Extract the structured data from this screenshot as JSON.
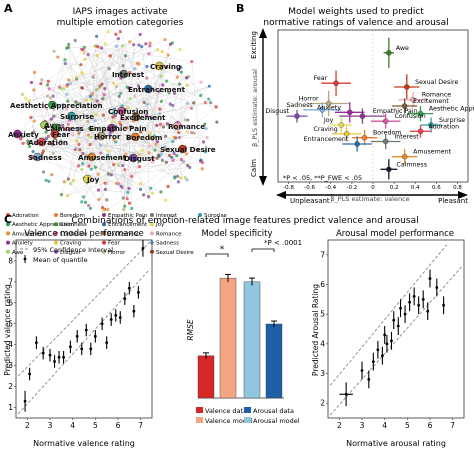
{
  "panels": {
    "a": {
      "letter": "A",
      "title_line1": "IAPS images activate",
      "title_line2": "multiple emotion categories",
      "cluster_labels": [
        {
          "text": "Interest"
        },
        {
          "text": "Craving"
        },
        {
          "text": "Entrancement"
        },
        {
          "text": "Aesthetic Appreciation"
        },
        {
          "text": "Surprise"
        },
        {
          "text": "Awe"
        },
        {
          "text": "Excitement"
        },
        {
          "text": "Calmness"
        },
        {
          "text": "Adoration"
        },
        {
          "text": "Fear"
        },
        {
          "text": "Confusion"
        },
        {
          "text": "Empathic Pain"
        },
        {
          "text": "Horror"
        },
        {
          "text": "Boredom"
        },
        {
          "text": "Anxiety"
        },
        {
          "text": "Romance"
        },
        {
          "text": "Sadness"
        },
        {
          "text": "Amusement"
        },
        {
          "text": "Disgust"
        },
        {
          "text": "Sexual Desire"
        },
        {
          "text": "Joy"
        }
      ],
      "legend": [
        {
          "label": "Adoration",
          "color": "#e8444f"
        },
        {
          "label": "Aesthetic Appreciation",
          "color": "#2e9f4a"
        },
        {
          "label": "Amusement",
          "color": "#e98a2d"
        },
        {
          "label": "Anxiety",
          "color": "#9a2a9a"
        },
        {
          "label": "Awe",
          "color": "#9bd75a"
        },
        {
          "label": "Boredom",
          "color": "#ee7b2c"
        },
        {
          "label": "Calmness",
          "color": "#3e8b3e"
        },
        {
          "label": "Confusion",
          "color": "#d35a9f"
        },
        {
          "label": "Craving",
          "color": "#e5c43a"
        },
        {
          "label": "Disgust",
          "color": "#7b4fa8"
        },
        {
          "label": "Empathic Pain",
          "color": "#8a3a8a"
        },
        {
          "label": "Entrancement",
          "color": "#2c6ba8"
        },
        {
          "label": "Excitement",
          "color": "#7a5a3a"
        },
        {
          "label": "Fear",
          "color": "#d83a3a"
        },
        {
          "label": "Horror",
          "color": "#b7a97a"
        },
        {
          "label": "Interest",
          "color": "#6f7a6f"
        },
        {
          "label": "Joy",
          "color": "#e5d84a"
        },
        {
          "label": "Romance",
          "color": "#f0a6b6"
        },
        {
          "label": "Sadness",
          "color": "#7fb0e0"
        },
        {
          "label": "Sexual Desire",
          "color": "#c43a1a"
        },
        {
          "label": "Surprise",
          "color": "#2aa0a0"
        }
      ]
    },
    "b": {
      "letter": "B",
      "title_line1": "Model weights used to predict",
      "title_line2": "normative ratings of valence and arousal",
      "y_top_label": "Exciting",
      "y_bottom_label": "Calm",
      "y_axis_label": "β_PLS estimate: arousal",
      "x_axis_label": "β_PLS estimate: valence",
      "x_left_label": "Unpleasant",
      "x_right_label": "Pleasant",
      "x_ticks": [
        "-0.8",
        "-0.6",
        "-0.4",
        "-0.2",
        "0",
        "0.2",
        "0.4",
        "0.6",
        "0.8"
      ],
      "note": "*P < .05, **P_FWE < .05"
    },
    "c": {
      "letter": "C",
      "title": "Combinations of emotion-related image features predict valence and arousal",
      "valence_title": "Valence model performance",
      "valence_ylabel": "Predicted valence rating",
      "valence_xlabel": "Normative valence rating",
      "valence_legend_ci": "95% Confidence Interval",
      "valence_legend_mean": "Mean of quantile",
      "valence_x_ticks": [
        "2",
        "3",
        "4",
        "5",
        "6",
        "7"
      ],
      "valence_y_ticks": [
        "1",
        "2",
        "3",
        "4",
        "5",
        "6",
        "7",
        "8"
      ],
      "spec_title_line1": "Model specificity",
      "spec_ylabel": "RMSE",
      "spec_annot_star": "*",
      "spec_annot_p": "*P < .0001",
      "spec_legend": [
        {
          "label": "Valence data",
          "color": "#d62728"
        },
        {
          "label": "Arousal data",
          "color": "#1f5fa8"
        },
        {
          "label": "Valence model",
          "color": "#f4a582"
        },
        {
          "label": "Arousal model",
          "color": "#92c5de"
        }
      ],
      "arousal_title": "Arousal model performance",
      "arousal_ylabel": "Predicted Arousal Rating",
      "arousal_xlabel": "Normative arousal rating",
      "arousal_x_ticks": [
        "2",
        "3",
        "4",
        "5",
        "6",
        "7"
      ],
      "arousal_y_ticks": [
        "2",
        "3",
        "4",
        "5",
        "6",
        "7"
      ]
    }
  },
  "chart_data": [
    {
      "type": "scatter",
      "title": "Model weights used to predict normative ratings of valence and arousal",
      "xlabel": "β_PLS estimate: valence",
      "ylabel": "β_PLS estimate: arousal",
      "xlim": [
        -0.9,
        0.9
      ],
      "points": [
        {
          "name": "Awe",
          "x": 0.15,
          "y": 0.42,
          "xerr": 0.05,
          "yerr": 0.12,
          "color": "#3e7a2e"
        },
        {
          "name": "Fear",
          "x": -0.35,
          "y": 0.18,
          "xerr": 0.14,
          "yerr": 0.1,
          "color": "#d83a3a"
        },
        {
          "name": "Sexual Desire",
          "x": 0.32,
          "y": 0.15,
          "xerr": 0.12,
          "yerr": 0.1,
          "color": "#c43a1a"
        },
        {
          "name": "Horror",
          "x": -0.42,
          "y": 0.02,
          "xerr": 0.2,
          "yerr": 0.1,
          "color": "#b7a97a"
        },
        {
          "name": "Romance",
          "x": 0.38,
          "y": 0.05,
          "xerr": 0.14,
          "yerr": 0.06,
          "color": "#f0a6b6"
        },
        {
          "name": "Excitement",
          "x": 0.3,
          "y": 0.0,
          "xerr": 0.12,
          "yerr": 0.06,
          "color": "#7a5a3a"
        },
        {
          "name": "Sadness",
          "x": -0.48,
          "y": -0.03,
          "xerr": 0.18,
          "yerr": 0.06,
          "color": "#7fb0e0"
        },
        {
          "name": "Anxiety",
          "x": -0.22,
          "y": -0.05,
          "xerr": 0.14,
          "yerr": 0.08,
          "color": "#9a2a9a"
        },
        {
          "name": "Aesthetic Appreciation",
          "x": 0.45,
          "y": -0.06,
          "xerr": 0.12,
          "yerr": 0.06,
          "color": "#2e9f4a"
        },
        {
          "name": "Disgust",
          "x": -0.72,
          "y": -0.08,
          "xerr": 0.1,
          "yerr": 0.05,
          "color": "#7b4fa8"
        },
        {
          "name": "Empathic Pain",
          "x": -0.1,
          "y": -0.08,
          "xerr": 0.22,
          "yerr": 0.06,
          "color": "#8a3a8a"
        },
        {
          "name": "Joy",
          "x": -0.3,
          "y": -0.15,
          "xerr": 0.1,
          "yerr": 0.06,
          "color": "#e5d84a"
        },
        {
          "name": "Confusion",
          "x": 0.12,
          "y": -0.12,
          "xerr": 0.14,
          "yerr": 0.06,
          "color": "#d35a9f"
        },
        {
          "name": "Surprise",
          "x": 0.55,
          "y": -0.15,
          "xerr": 0.1,
          "yerr": 0.06,
          "color": "#2aa0a0"
        },
        {
          "name": "Craving",
          "x": -0.25,
          "y": -0.22,
          "xerr": 0.14,
          "yerr": 0.06,
          "color": "#e5c43a"
        },
        {
          "name": "Adoration",
          "x": 0.45,
          "y": -0.2,
          "xerr": 0.1,
          "yerr": 0.05,
          "color": "#e8444f"
        },
        {
          "name": "Boredom",
          "x": -0.08,
          "y": -0.25,
          "xerr": 0.12,
          "yerr": 0.06,
          "color": "#ee7b2c"
        },
        {
          "name": "Entrancement",
          "x": -0.15,
          "y": -0.3,
          "xerr": 0.14,
          "yerr": 0.06,
          "color": "#2c6ba8"
        },
        {
          "name": "Interest",
          "x": 0.12,
          "y": -0.28,
          "xerr": 0.14,
          "yerr": 0.06,
          "color": "#6f7a6f"
        },
        {
          "name": "Amusement",
          "x": 0.3,
          "y": -0.4,
          "xerr": 0.12,
          "yerr": 0.06,
          "color": "#e98a2d"
        },
        {
          "name": "Calmness",
          "x": 0.15,
          "y": -0.5,
          "xerr": 0.08,
          "yerr": 0.08,
          "color": "#1a1a2e"
        }
      ]
    },
    {
      "type": "scatter",
      "title": "Valence model performance",
      "xlabel": "Normative valence rating",
      "ylabel": "Predicted valence rating",
      "xlim": [
        1.5,
        7.5
      ],
      "ylim": [
        0.5,
        9
      ],
      "points": [
        {
          "x": 1.9,
          "y": 1.3,
          "yerr": 0.5
        },
        {
          "x": 2.1,
          "y": 2.6,
          "yerr": 0.3
        },
        {
          "x": 2.4,
          "y": 4.1,
          "yerr": 0.3
        },
        {
          "x": 2.7,
          "y": 3.6,
          "yerr": 0.3
        },
        {
          "x": 3.0,
          "y": 3.5,
          "yerr": 0.3
        },
        {
          "x": 3.2,
          "y": 3.2,
          "yerr": 0.3
        },
        {
          "x": 3.4,
          "y": 3.4,
          "yerr": 0.3
        },
        {
          "x": 3.6,
          "y": 3.4,
          "yerr": 0.3
        },
        {
          "x": 3.9,
          "y": 3.9,
          "yerr": 0.3
        },
        {
          "x": 4.2,
          "y": 4.4,
          "yerr": 0.3
        },
        {
          "x": 4.4,
          "y": 3.8,
          "yerr": 0.3
        },
        {
          "x": 4.6,
          "y": 4.7,
          "yerr": 0.3
        },
        {
          "x": 4.8,
          "y": 3.8,
          "yerr": 0.3
        },
        {
          "x": 5.0,
          "y": 4.4,
          "yerr": 0.3
        },
        {
          "x": 5.3,
          "y": 5.0,
          "yerr": 0.3
        },
        {
          "x": 5.5,
          "y": 4.1,
          "yerr": 0.3
        },
        {
          "x": 5.7,
          "y": 5.2,
          "yerr": 0.3
        },
        {
          "x": 5.9,
          "y": 5.4,
          "yerr": 0.3
        },
        {
          "x": 6.1,
          "y": 5.3,
          "yerr": 0.3
        },
        {
          "x": 6.3,
          "y": 6.2,
          "yerr": 0.3
        },
        {
          "x": 6.5,
          "y": 6.7,
          "yerr": 0.3
        },
        {
          "x": 6.7,
          "y": 5.6,
          "yerr": 0.3
        },
        {
          "x": 6.9,
          "y": 6.5,
          "yerr": 0.3
        },
        {
          "x": 7.1,
          "y": 8.6,
          "yerr": 0.4
        }
      ]
    },
    {
      "type": "bar",
      "title": "Model specificity",
      "ylabel": "RMSE",
      "categories": [
        "Valence data",
        "Arousal data"
      ],
      "series": [
        {
          "name": "Valence model",
          "values": [
            0.57,
            1.62
          ],
          "errors": [
            0.04,
            0.05
          ]
        },
        {
          "name": "Arousal model",
          "values": [
            1.57,
            1.0
          ],
          "errors": [
            0.05,
            0.04
          ]
        }
      ],
      "bar_colors": [
        "#d62728",
        "#f4a582",
        "#92c5de",
        "#1f5fa8"
      ],
      "ylim": [
        0,
        2
      ]
    },
    {
      "type": "scatter",
      "title": "Arousal model performance",
      "xlabel": "Normative arousal rating",
      "ylabel": "Predicted Arousal Rating",
      "xlim": [
        1.5,
        7.5
      ],
      "ylim": [
        1.5,
        7.5
      ],
      "points": [
        {
          "x": 2.3,
          "y": 2.3,
          "yerr": 0.4,
          "xerr": 0.3
        },
        {
          "x": 3.0,
          "y": 3.1,
          "yerr": 0.3
        },
        {
          "x": 3.3,
          "y": 2.8,
          "yerr": 0.3
        },
        {
          "x": 3.5,
          "y": 3.4,
          "yerr": 0.3
        },
        {
          "x": 3.7,
          "y": 3.8,
          "yerr": 0.3
        },
        {
          "x": 3.9,
          "y": 3.6,
          "yerr": 0.3
        },
        {
          "x": 4.0,
          "y": 4.3,
          "yerr": 0.3
        },
        {
          "x": 4.1,
          "y": 4.0,
          "yerr": 0.3
        },
        {
          "x": 4.3,
          "y": 4.1,
          "yerr": 0.3
        },
        {
          "x": 4.4,
          "y": 4.8,
          "yerr": 0.3
        },
        {
          "x": 4.6,
          "y": 4.6,
          "yerr": 0.3
        },
        {
          "x": 4.7,
          "y": 5.2,
          "yerr": 0.3
        },
        {
          "x": 4.9,
          "y": 5.0,
          "yerr": 0.3
        },
        {
          "x": 5.1,
          "y": 5.4,
          "yerr": 0.3
        },
        {
          "x": 5.3,
          "y": 5.6,
          "yerr": 0.3
        },
        {
          "x": 5.5,
          "y": 5.3,
          "yerr": 0.3
        },
        {
          "x": 5.7,
          "y": 5.5,
          "yerr": 0.3
        },
        {
          "x": 5.9,
          "y": 5.1,
          "yerr": 0.3
        },
        {
          "x": 6.0,
          "y": 6.2,
          "yerr": 0.3
        },
        {
          "x": 6.3,
          "y": 5.9,
          "yerr": 0.3
        },
        {
          "x": 6.6,
          "y": 5.3,
          "yerr": 0.3
        }
      ]
    }
  ]
}
